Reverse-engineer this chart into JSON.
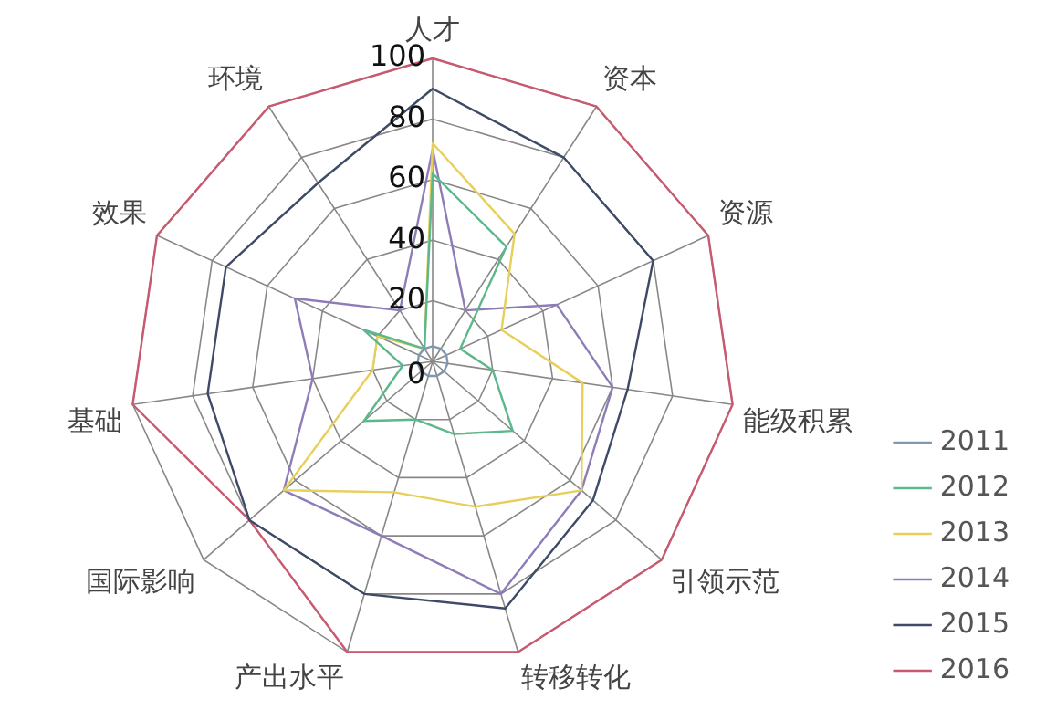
{
  "chart_data": {
    "type": "radar",
    "categories": [
      "人才",
      "资本",
      "资源",
      "能级积累",
      "引领示范",
      "转移转化",
      "产出水平",
      "国际影响",
      "基础",
      "效果",
      "环境"
    ],
    "ylim": [
      0,
      100
    ],
    "yticks": [
      0,
      20,
      40,
      60,
      80,
      100
    ],
    "grid": true,
    "legend": "bottom right",
    "marker": "none",
    "line_style": "solid",
    "series": [
      {
        "name": "2011",
        "color": "#7f97b2",
        "values": [
          5,
          5,
          5,
          5,
          5,
          5,
          5,
          5,
          5,
          5,
          5
        ]
      },
      {
        "name": "2012",
        "color": "#5cb88a",
        "values": [
          62,
          45,
          10,
          20,
          35,
          25,
          20,
          30,
          10,
          25,
          5
        ]
      },
      {
        "name": "2013",
        "color": "#e8cf5a",
        "values": [
          72,
          50,
          25,
          50,
          65,
          50,
          45,
          65,
          20,
          20,
          5
        ]
      },
      {
        "name": "2014",
        "color": "#8e7cb8",
        "values": [
          70,
          20,
          45,
          60,
          65,
          80,
          60,
          65,
          40,
          50,
          20
        ]
      },
      {
        "name": "2015",
        "color": "#3e4a66",
        "values": [
          90,
          80,
          80,
          65,
          70,
          85,
          80,
          80,
          75,
          75,
          70
        ]
      },
      {
        "name": "2016",
        "color": "#c85a70",
        "values": [
          100,
          100,
          100,
          100,
          100,
          100,
          100,
          80,
          100,
          100,
          100
        ]
      }
    ]
  }
}
